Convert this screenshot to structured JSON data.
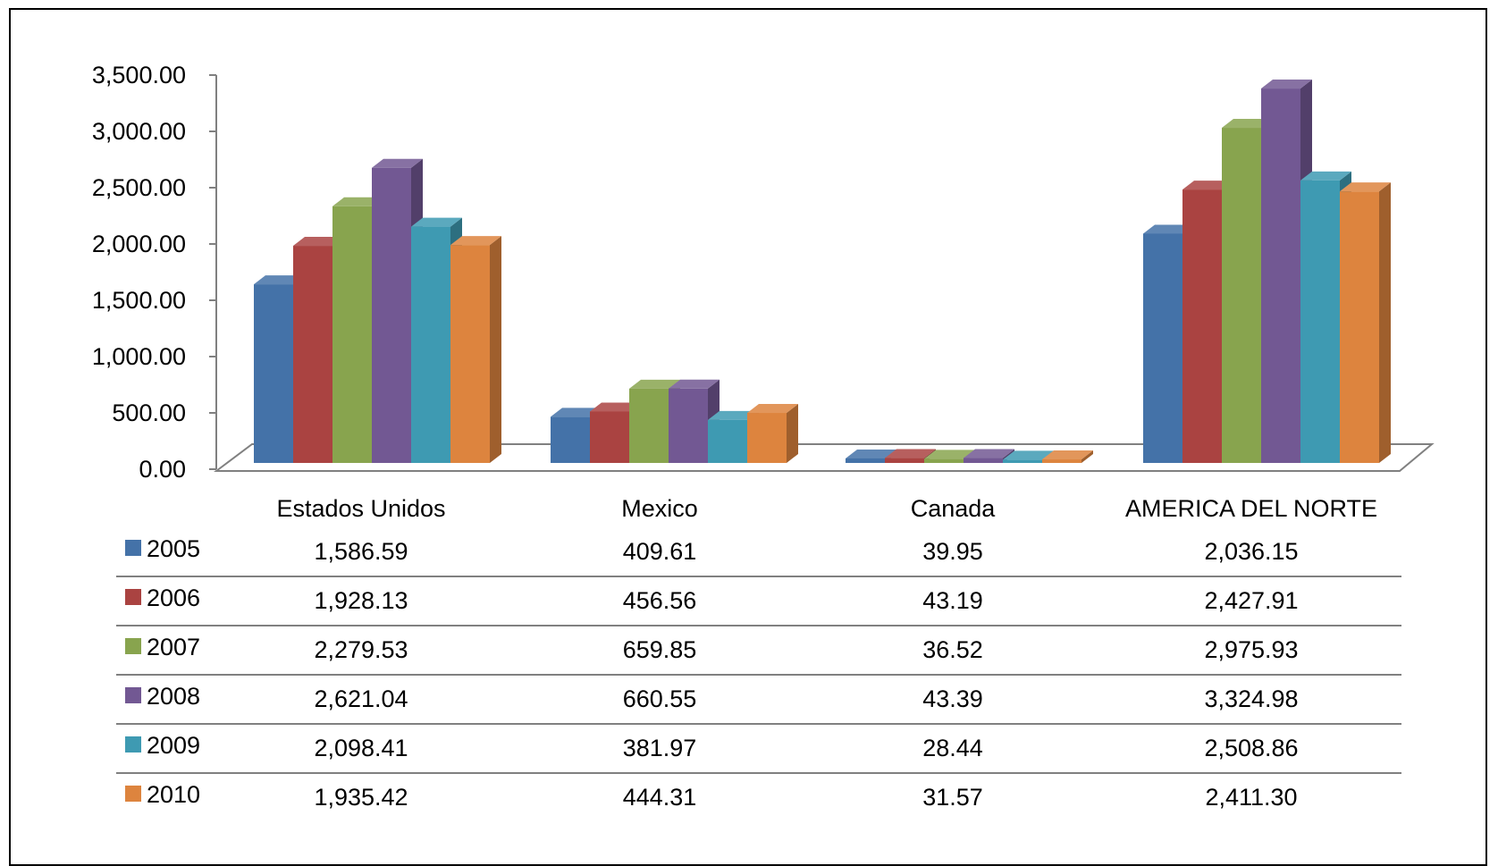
{
  "chart_data": {
    "type": "bar",
    "title": "",
    "xlabel": "",
    "ylabel": "",
    "ylim": [
      0,
      3500
    ],
    "yticks": [
      "0.00",
      "500.00",
      "1,000.00",
      "1,500.00",
      "2,000.00",
      "2,500.00",
      "3,000.00",
      "3,500.00"
    ],
    "categories": [
      "Estados Unidos",
      "Mexico",
      "Canada",
      "AMERICA DEL NORTE"
    ],
    "legend_placement": "data-table-left",
    "grid": false,
    "series": [
      {
        "name": "2005",
        "color": "#4472A8",
        "values": [
          1586.59,
          409.61,
          39.95,
          2036.15
        ],
        "labels": [
          "1,586.59",
          "409.61",
          "39.95",
          "2,036.15"
        ]
      },
      {
        "name": "2006",
        "color": "#AA4341",
        "values": [
          1928.13,
          456.56,
          43.19,
          2427.91
        ],
        "labels": [
          "1,928.13",
          "456.56",
          "43.19",
          "2,427.91"
        ]
      },
      {
        "name": "2007",
        "color": "#88A44E",
        "values": [
          2279.53,
          659.85,
          36.52,
          2975.93
        ],
        "labels": [
          "2,279.53",
          "659.85",
          "36.52",
          "2,975.93"
        ]
      },
      {
        "name": "2008",
        "color": "#725893",
        "values": [
          2621.04,
          660.55,
          43.39,
          3324.98
        ],
        "labels": [
          "2,621.04",
          "660.55",
          "43.39",
          "3,324.98"
        ]
      },
      {
        "name": "2009",
        "color": "#3E9AB2",
        "values": [
          2098.41,
          381.97,
          28.44,
          2508.86
        ],
        "labels": [
          "2,098.41",
          "381.97",
          "28.44",
          "2,508.86"
        ]
      },
      {
        "name": "2010",
        "color": "#DD843E",
        "values": [
          1935.42,
          444.31,
          31.57,
          2411.3
        ],
        "labels": [
          "1,935.42",
          "444.31",
          "31.57",
          "2,411.30"
        ]
      }
    ]
  }
}
